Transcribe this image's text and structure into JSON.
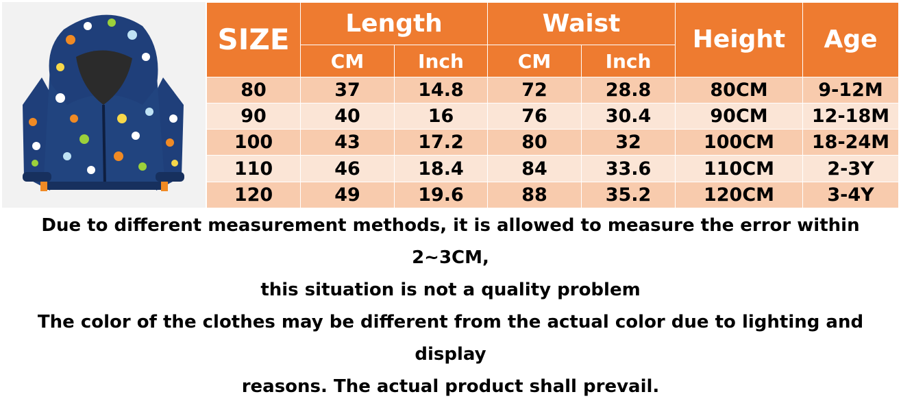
{
  "table": {
    "header": {
      "size": "SIZE",
      "length": "Length",
      "waist": "Waist",
      "height": "Height",
      "age": "Age",
      "length_cm": "CM",
      "length_inch": "Inch",
      "waist_cm": "CM",
      "waist_inch": "Inch"
    },
    "rows": [
      {
        "size": "80",
        "length_cm": "37",
        "length_inch": "14.8",
        "waist_cm": "72",
        "waist_inch": "28.8",
        "height": "80CM",
        "age": "9-12M"
      },
      {
        "size": "90",
        "length_cm": "40",
        "length_inch": "16",
        "waist_cm": "76",
        "waist_inch": "30.4",
        "height": "90CM",
        "age": "12-18M"
      },
      {
        "size": "100",
        "length_cm": "43",
        "length_inch": "17.2",
        "waist_cm": "80",
        "waist_inch": "32",
        "height": "100CM",
        "age": "18-24M"
      },
      {
        "size": "110",
        "length_cm": "46",
        "length_inch": "18.4",
        "waist_cm": "84",
        "waist_inch": "33.6",
        "height": "110CM",
        "age": "2-3Y"
      },
      {
        "size": "120",
        "length_cm": "49",
        "length_inch": "19.6",
        "waist_cm": "88",
        "waist_inch": "35.2",
        "height": "120CM",
        "age": "3-4Y"
      }
    ]
  },
  "notes": {
    "line1": "Due to different measurement methods, it is allowed to measure the error within 2~3CM,",
    "line2": "this situation is not a quality problem",
    "line3": "The color of the clothes may be different from the actual color due to lighting and display",
    "line4": "reasons. The actual product shall prevail."
  },
  "colors": {
    "header_bg": "#ee7b30",
    "row_dark": "#f8cbad",
    "row_light": "#fbe5d6",
    "jacket": "#1f3f7a"
  }
}
